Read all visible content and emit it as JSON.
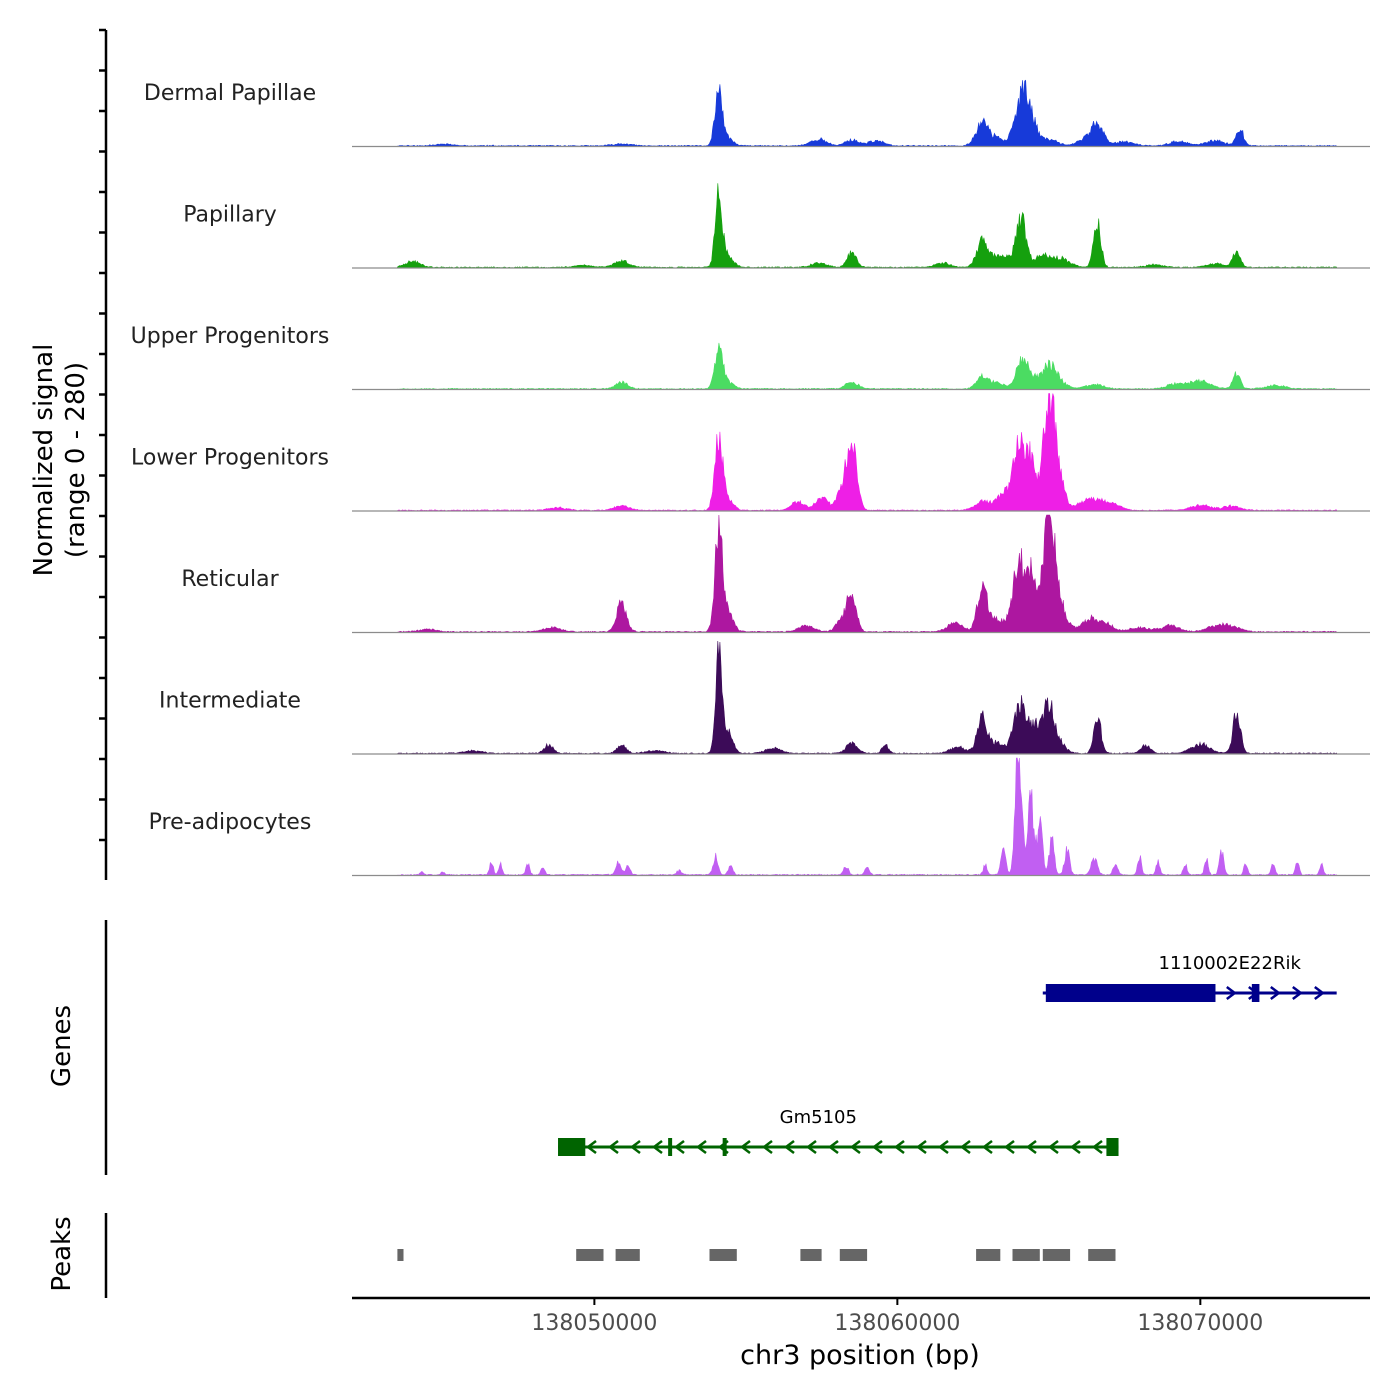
{
  "chart_data": {
    "type": "area",
    "title": "",
    "xlabel": "chr3 position (bp)",
    "ylabel": "Normalized signal",
    "ylabel_range": "(range 0 - 280)",
    "xlim": [
      138042000,
      138075600
    ],
    "ylim": [
      0,
      280
    ],
    "x_ticks": [
      138050000,
      138060000,
      138070000
    ],
    "x_tick_labels": [
      "138050000",
      "138060000",
      "138070000"
    ],
    "signal_start": 138043500,
    "signal_end": 138074500,
    "tracks": [
      {
        "name": "Dermal Papillae",
        "color": "#173ad9",
        "noise": 0.04,
        "seed": 11,
        "peaks": [
          [
            138045000,
            4,
            300
          ],
          [
            138050900,
            5,
            300
          ],
          [
            138054100,
            130,
            120
          ],
          [
            138054350,
            18,
            200
          ],
          [
            138057400,
            16,
            250
          ],
          [
            138058500,
            14,
            220
          ],
          [
            138059300,
            12,
            250
          ],
          [
            138062800,
            55,
            200
          ],
          [
            138063300,
            18,
            220
          ],
          [
            138064100,
            110,
            220
          ],
          [
            138064400,
            45,
            220
          ],
          [
            138065000,
            14,
            300
          ],
          [
            138066600,
            50,
            200
          ],
          [
            138066200,
            15,
            250
          ],
          [
            138067500,
            10,
            300
          ],
          [
            138070500,
            12,
            300
          ],
          [
            138071300,
            40,
            120
          ],
          [
            138069300,
            10,
            300
          ]
        ]
      },
      {
        "name": "Papillary",
        "color": "#15a00e",
        "noise": 0.03,
        "seed": 23,
        "peaks": [
          [
            138044000,
            14,
            250
          ],
          [
            138049600,
            5,
            300
          ],
          [
            138050900,
            15,
            250
          ],
          [
            138054100,
            160,
            110
          ],
          [
            138054350,
            30,
            200
          ],
          [
            138057400,
            10,
            250
          ],
          [
            138058500,
            35,
            150
          ],
          [
            138061500,
            10,
            250
          ],
          [
            138062800,
            60,
            180
          ],
          [
            138063300,
            25,
            220
          ],
          [
            138063800,
            20,
            250
          ],
          [
            138064100,
            100,
            160
          ],
          [
            138064800,
            25,
            300
          ],
          [
            138065400,
            18,
            300
          ],
          [
            138066600,
            110,
            120
          ],
          [
            138071200,
            40,
            120
          ],
          [
            138070500,
            8,
            300
          ],
          [
            138068500,
            6,
            300
          ]
        ]
      },
      {
        "name": "Upper Progenitors",
        "color": "#4bdc62",
        "noise": 0.03,
        "seed": 37,
        "peaks": [
          [
            138050900,
            15,
            200
          ],
          [
            138054100,
            80,
            130
          ],
          [
            138054350,
            18,
            200
          ],
          [
            138058500,
            16,
            200
          ],
          [
            138062800,
            30,
            180
          ],
          [
            138063300,
            15,
            220
          ],
          [
            138064100,
            70,
            180
          ],
          [
            138064500,
            25,
            250
          ],
          [
            138065000,
            45,
            200
          ],
          [
            138065300,
            20,
            250
          ],
          [
            138066500,
            10,
            300
          ],
          [
            138070000,
            18,
            350
          ],
          [
            138069200,
            12,
            300
          ],
          [
            138071200,
            35,
            120
          ],
          [
            138072500,
            8,
            300
          ]
        ]
      },
      {
        "name": "Lower Progenitors",
        "color": "#ee1fe6",
        "noise": 0.035,
        "seed": 53,
        "peaks": [
          [
            138048800,
            6,
            300
          ],
          [
            138050900,
            10,
            250
          ],
          [
            138054100,
            160,
            130
          ],
          [
            138054350,
            30,
            200
          ],
          [
            138056700,
            20,
            220
          ],
          [
            138057500,
            30,
            200
          ],
          [
            138058500,
            150,
            160
          ],
          [
            138058200,
            45,
            200
          ],
          [
            138062800,
            20,
            250
          ],
          [
            138063500,
            35,
            250
          ],
          [
            138064000,
            120,
            200
          ],
          [
            138064300,
            80,
            220
          ],
          [
            138064500,
            50,
            180
          ],
          [
            138065000,
            260,
            160
          ],
          [
            138065300,
            90,
            200
          ],
          [
            138066300,
            25,
            300
          ],
          [
            138067000,
            20,
            300
          ],
          [
            138070000,
            12,
            300
          ],
          [
            138071000,
            10,
            300
          ]
        ]
      },
      {
        "name": "Reticular",
        "color": "#ad17a0",
        "noise": 0.035,
        "seed": 71,
        "peaks": [
          [
            138044500,
            6,
            300
          ],
          [
            138048600,
            10,
            300
          ],
          [
            138050900,
            70,
            160
          ],
          [
            138054100,
            240,
            120
          ],
          [
            138054350,
            50,
            200
          ],
          [
            138057000,
            15,
            250
          ],
          [
            138058500,
            80,
            150
          ],
          [
            138058200,
            30,
            200
          ],
          [
            138061900,
            20,
            250
          ],
          [
            138062800,
            110,
            160
          ],
          [
            138063300,
            30,
            220
          ],
          [
            138064000,
            140,
            200
          ],
          [
            138064300,
            60,
            220
          ],
          [
            138064500,
            90,
            180
          ],
          [
            138065000,
            310,
            160
          ],
          [
            138065300,
            80,
            220
          ],
          [
            138066300,
            25,
            300
          ],
          [
            138066800,
            20,
            300
          ],
          [
            138068000,
            10,
            300
          ],
          [
            138069000,
            15,
            300
          ],
          [
            138070500,
            12,
            300
          ],
          [
            138071000,
            12,
            300
          ]
        ]
      },
      {
        "name": "Intermediate",
        "color": "#3c0b58",
        "noise": 0.03,
        "seed": 89,
        "peaks": [
          [
            138046000,
            6,
            300
          ],
          [
            138048500,
            20,
            150
          ],
          [
            138050900,
            20,
            150
          ],
          [
            138052000,
            6,
            300
          ],
          [
            138054100,
            230,
            100
          ],
          [
            138054400,
            60,
            150
          ],
          [
            138055900,
            12,
            250
          ],
          [
            138058500,
            25,
            180
          ],
          [
            138059600,
            22,
            100
          ],
          [
            138062000,
            15,
            250
          ],
          [
            138062800,
            85,
            160
          ],
          [
            138063300,
            25,
            220
          ],
          [
            138064000,
            100,
            180
          ],
          [
            138064300,
            40,
            220
          ],
          [
            138064600,
            50,
            200
          ],
          [
            138065000,
            110,
            150
          ],
          [
            138065300,
            30,
            220
          ],
          [
            138066600,
            90,
            120
          ],
          [
            138068200,
            20,
            150
          ],
          [
            138070000,
            22,
            300
          ],
          [
            138071200,
            100,
            120
          ]
        ]
      },
      {
        "name": "Pre-adipocytes",
        "color": "#c15ff2",
        "noise": 0.04,
        "seed": 97,
        "peaks": [
          [
            138044300,
            8,
            50
          ],
          [
            138045000,
            8,
            50
          ],
          [
            138046600,
            30,
            60
          ],
          [
            138046900,
            25,
            60
          ],
          [
            138047800,
            25,
            60
          ],
          [
            138048300,
            20,
            60
          ],
          [
            138050800,
            30,
            80
          ],
          [
            138051100,
            20,
            80
          ],
          [
            138052800,
            10,
            80
          ],
          [
            138054000,
            45,
            80
          ],
          [
            138054500,
            20,
            80
          ],
          [
            138058300,
            20,
            80
          ],
          [
            138059000,
            15,
            80
          ],
          [
            138062900,
            25,
            60
          ],
          [
            138063500,
            60,
            80
          ],
          [
            138064000,
            330,
            100
          ],
          [
            138064400,
            200,
            90
          ],
          [
            138064700,
            120,
            90
          ],
          [
            138065100,
            90,
            80
          ],
          [
            138065600,
            60,
            80
          ],
          [
            138066500,
            40,
            100
          ],
          [
            138067200,
            25,
            80
          ],
          [
            138068000,
            45,
            60
          ],
          [
            138068600,
            30,
            60
          ],
          [
            138069500,
            25,
            60
          ],
          [
            138070200,
            35,
            60
          ],
          [
            138070700,
            55,
            70
          ],
          [
            138071500,
            30,
            60
          ],
          [
            138072400,
            25,
            60
          ],
          [
            138073200,
            30,
            60
          ],
          [
            138074000,
            25,
            60
          ]
        ]
      }
    ],
    "genes": [
      {
        "name": "1110002E22Rik",
        "strand": "+",
        "color": "#00008b",
        "start": 138064800,
        "end": 138074500,
        "cds_start": 138064900,
        "cds_end": 138070500,
        "exons": [
          [
            138071700,
            138071950
          ]
        ]
      },
      {
        "name": "Gm5105",
        "strand": "-",
        "color": "#006400",
        "start": 138048800,
        "end": 138067300,
        "cds_start": 138048800,
        "cds_end": 138049700,
        "exons": [
          [
            138066900,
            138067300
          ]
        ],
        "small_exons": [
          138052500,
          138054300
        ]
      }
    ],
    "peaks": [
      [
        138043500,
        138043700
      ],
      [
        138049400,
        138050300
      ],
      [
        138050700,
        138051500
      ],
      [
        138053800,
        138054700
      ],
      [
        138056800,
        138057500
      ],
      [
        138058100,
        138059000
      ],
      [
        138062600,
        138063400
      ],
      [
        138063800,
        138064700
      ],
      [
        138064800,
        138065700
      ],
      [
        138066300,
        138067200
      ]
    ],
    "panel_labels": {
      "genes": "Genes",
      "peaks": "Peaks"
    }
  }
}
